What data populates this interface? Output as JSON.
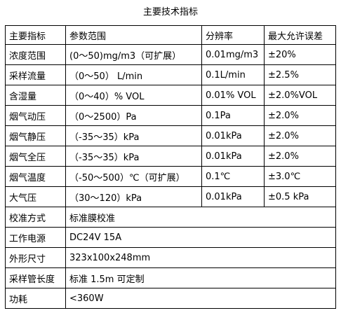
{
  "title": "主要技术指标",
  "table": {
    "header": [
      "主要指标",
      "参数范围",
      "分辨率",
      "最大允许误差"
    ],
    "rows": [
      [
        "浓度范围",
        "(0～50)mg/m3（可扩展）",
        "0.01mg/m3",
        "±20%"
      ],
      [
        "采样流量",
        "（0～50） L/min",
        "0.1L/min",
        "±2.5%"
      ],
      [
        "含湿量",
        "（0～40）% VOL",
        "0.01% VOL",
        "±2.0%VOL"
      ],
      [
        "烟气动压",
        "（0～2500）Pa",
        "0.1Pa",
        "±2.0%"
      ],
      [
        "烟气静压",
        "（-35～35）kPa",
        "0.01kPa",
        "±2.0%"
      ],
      [
        "烟气全压",
        "（-35～35）kPa",
        "0.01kPa",
        "±2.0%"
      ],
      [
        "烟气温度",
        "（-50～500）℃（可扩展）",
        "0.1℃",
        "±3.0℃"
      ],
      [
        "大气压",
        "（30～120）kPa",
        "0.01kPa",
        "±0.5 kPa"
      ]
    ],
    "spec_rows": [
      [
        "校准方式",
        "标准膜校准"
      ],
      [
        "工作电源",
        "DC24V 15A"
      ],
      [
        "外形尺寸",
        "323x100x248mm"
      ],
      [
        "采样管长度",
        "标准 1.5m 可定制"
      ],
      [
        "功耗",
        "<360W"
      ]
    ]
  }
}
